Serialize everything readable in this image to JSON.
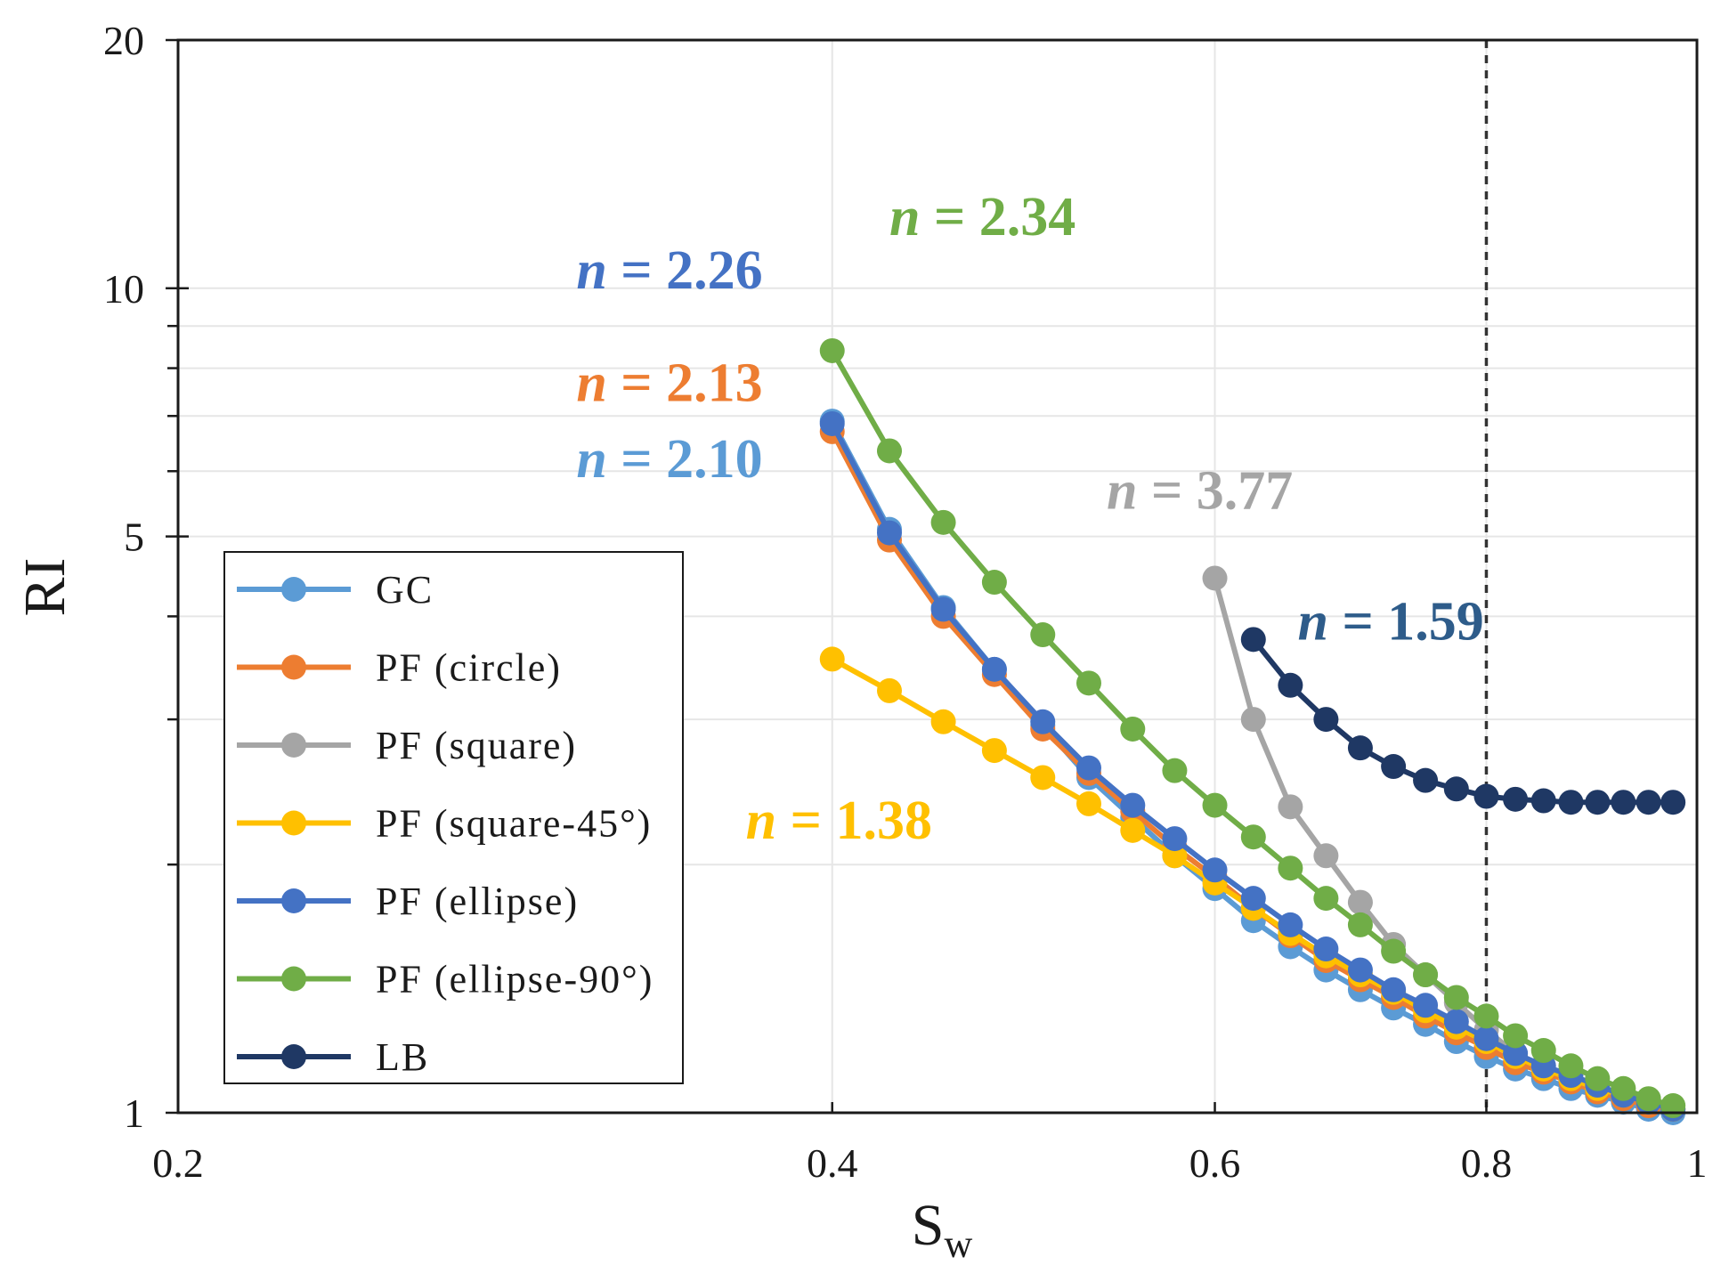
{
  "chart_data": {
    "type": "line",
    "title": "",
    "xlabel_main": "S",
    "xlabel_sub": "w",
    "ylabel": "RI",
    "x_scale": "log",
    "y_scale": "log",
    "xlim": [
      0.2,
      1
    ],
    "ylim": [
      1,
      20
    ],
    "x_ticks": [
      {
        "value": 0.2,
        "label": "0.2"
      },
      {
        "value": 0.4,
        "label": "0.4"
      },
      {
        "value": 0.6,
        "label": "0.6"
      },
      {
        "value": 0.8,
        "label": "0.8"
      },
      {
        "value": 1,
        "label": "1"
      }
    ],
    "y_ticks": [
      {
        "value": 1,
        "label": "1"
      },
      {
        "value": 5,
        "label": "5"
      },
      {
        "value": 10,
        "label": "10"
      },
      {
        "value": 20,
        "label": "20"
      }
    ],
    "y_minor_ticks": [
      2,
      3,
      4,
      6,
      7,
      8,
      9
    ],
    "reference_line_x": 0.8,
    "legend_position": "lower-left",
    "series": [
      {
        "name": "GC",
        "color": "#5B9BD5",
        "x": [
          0.4,
          0.425,
          0.45,
          0.475,
          0.5,
          0.525,
          0.55,
          0.575,
          0.6,
          0.625,
          0.65,
          0.675,
          0.7,
          0.725,
          0.75,
          0.775,
          0.8,
          0.825,
          0.85,
          0.875,
          0.9,
          0.925,
          0.95,
          0.975
        ],
        "y": [
          6.9,
          5.1,
          4.1,
          3.45,
          2.95,
          2.55,
          2.28,
          2.05,
          1.87,
          1.71,
          1.59,
          1.49,
          1.41,
          1.34,
          1.28,
          1.22,
          1.17,
          1.13,
          1.1,
          1.07,
          1.05,
          1.03,
          1.01,
          1.0
        ]
      },
      {
        "name": "PF (circle)",
        "color": "#ED7D31",
        "x": [
          0.4,
          0.425,
          0.45,
          0.475,
          0.5,
          0.525,
          0.55,
          0.575,
          0.6,
          0.625,
          0.65,
          0.675,
          0.7,
          0.725,
          0.75,
          0.775,
          0.8,
          0.825,
          0.85,
          0.875,
          0.9,
          0.925,
          0.95,
          0.975
        ],
        "y": [
          6.7,
          4.95,
          4.0,
          3.4,
          2.92,
          2.58,
          2.32,
          2.1,
          1.93,
          1.77,
          1.64,
          1.53,
          1.45,
          1.38,
          1.31,
          1.25,
          1.2,
          1.15,
          1.12,
          1.09,
          1.06,
          1.04,
          1.02,
          1.01
        ]
      },
      {
        "name": "PF (square)",
        "color": "#A5A5A5",
        "x": [
          0.6,
          0.625,
          0.65,
          0.675,
          0.7,
          0.725,
          0.75,
          0.775,
          0.8,
          0.825
        ],
        "y": [
          4.45,
          3.0,
          2.35,
          2.05,
          1.8,
          1.6,
          1.47,
          1.36,
          1.26,
          1.18
        ]
      },
      {
        "name": "PF (square-45°)",
        "color": "#FFC000",
        "x": [
          0.4,
          0.425,
          0.45,
          0.475,
          0.5,
          0.525,
          0.55,
          0.575,
          0.6,
          0.625,
          0.65,
          0.675,
          0.7,
          0.725,
          0.75,
          0.775,
          0.8,
          0.825,
          0.85,
          0.875,
          0.9,
          0.925,
          0.95,
          0.975
        ],
        "y": [
          3.55,
          3.25,
          2.98,
          2.75,
          2.55,
          2.37,
          2.2,
          2.05,
          1.9,
          1.77,
          1.65,
          1.55,
          1.47,
          1.4,
          1.33,
          1.27,
          1.22,
          1.17,
          1.13,
          1.1,
          1.07,
          1.05,
          1.03,
          1.01
        ]
      },
      {
        "name": "PF (ellipse)",
        "color": "#4472C4",
        "x": [
          0.4,
          0.425,
          0.45,
          0.475,
          0.5,
          0.525,
          0.55,
          0.575,
          0.6,
          0.625,
          0.65,
          0.675,
          0.7,
          0.725,
          0.75,
          0.775,
          0.8,
          0.825,
          0.85,
          0.875,
          0.9,
          0.925,
          0.95,
          0.975
        ],
        "y": [
          6.85,
          5.05,
          4.08,
          3.45,
          2.98,
          2.62,
          2.36,
          2.15,
          1.97,
          1.82,
          1.69,
          1.58,
          1.49,
          1.41,
          1.35,
          1.29,
          1.23,
          1.18,
          1.14,
          1.11,
          1.08,
          1.05,
          1.03,
          1.01
        ]
      },
      {
        "name": "PF (ellipse-90°)",
        "color": "#70AD47",
        "x": [
          0.4,
          0.425,
          0.45,
          0.475,
          0.5,
          0.525,
          0.55,
          0.575,
          0.6,
          0.625,
          0.65,
          0.675,
          0.7,
          0.725,
          0.75,
          0.775,
          0.8,
          0.825,
          0.85,
          0.875,
          0.9,
          0.925,
          0.95,
          0.975
        ],
        "y": [
          8.4,
          6.35,
          5.2,
          4.4,
          3.8,
          3.32,
          2.92,
          2.6,
          2.36,
          2.16,
          1.98,
          1.82,
          1.69,
          1.57,
          1.47,
          1.38,
          1.31,
          1.24,
          1.19,
          1.14,
          1.1,
          1.07,
          1.04,
          1.02
        ]
      },
      {
        "name": "LB",
        "color": "#1F3864",
        "x": [
          0.625,
          0.65,
          0.675,
          0.7,
          0.725,
          0.75,
          0.775,
          0.8,
          0.825,
          0.85,
          0.875,
          0.9,
          0.925,
          0.95,
          0.975
        ],
        "y": [
          3.75,
          3.3,
          3.0,
          2.77,
          2.63,
          2.53,
          2.47,
          2.42,
          2.4,
          2.39,
          2.38,
          2.38,
          2.38,
          2.38,
          2.38
        ]
      }
    ],
    "annotations": [
      {
        "prefix": "n",
        "text": " = 2.34",
        "color": "#70AD47",
        "x": 0.425,
        "y": 11.6
      },
      {
        "prefix": "n",
        "text": " = 2.26",
        "color": "#4472C4",
        "x": 0.305,
        "y": 10.0
      },
      {
        "prefix": "n",
        "text": " = 2.13",
        "color": "#ED7D31",
        "x": 0.305,
        "y": 7.3
      },
      {
        "prefix": "n",
        "text": " = 2.10",
        "color": "#5B9BD5",
        "x": 0.305,
        "y": 5.9
      },
      {
        "prefix": "n",
        "text": " = 3.77",
        "color": "#A5A5A5",
        "x": 0.535,
        "y": 5.4
      },
      {
        "prefix": "n",
        "text": " = 1.59",
        "color": "#2E5C8A",
        "x": 0.655,
        "y": 3.75
      },
      {
        "prefix": "n",
        "text": " = 1.38",
        "color": "#FFC000",
        "x": 0.365,
        "y": 2.15
      }
    ]
  }
}
